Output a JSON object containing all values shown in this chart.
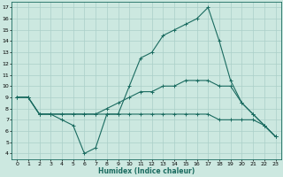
{
  "title": "",
  "xlabel": "Humidex (Indice chaleur)",
  "ylabel": "",
  "background_color": "#cce8e0",
  "line_color": "#1a6b60",
  "grid_color": "#aacfc8",
  "xlim": [
    -0.5,
    23.5
  ],
  "ylim": [
    3.5,
    17.5
  ],
  "xticks": [
    0,
    1,
    2,
    3,
    4,
    5,
    6,
    7,
    8,
    9,
    10,
    11,
    12,
    13,
    14,
    15,
    16,
    17,
    18,
    19,
    20,
    21,
    22,
    23
  ],
  "yticks": [
    4,
    5,
    6,
    7,
    8,
    9,
    10,
    11,
    12,
    13,
    14,
    15,
    16,
    17
  ],
  "line1_x": [
    0,
    1,
    2,
    3,
    4,
    5,
    6,
    7,
    8,
    9,
    10,
    11,
    12,
    13,
    14,
    15,
    16,
    17,
    18,
    19,
    20,
    21,
    22,
    23
  ],
  "line1_y": [
    9.0,
    9.0,
    7.5,
    7.5,
    7.0,
    6.5,
    4.0,
    4.5,
    7.5,
    7.5,
    10.0,
    12.5,
    13.0,
    14.5,
    15.0,
    15.5,
    16.0,
    17.0,
    14.0,
    10.5,
    8.5,
    7.5,
    6.5,
    5.5
  ],
  "line2_x": [
    0,
    1,
    2,
    3,
    4,
    5,
    6,
    7,
    8,
    9,
    10,
    11,
    12,
    13,
    14,
    15,
    16,
    17,
    18,
    19,
    20,
    21,
    22,
    23
  ],
  "line2_y": [
    9.0,
    9.0,
    7.5,
    7.5,
    7.5,
    7.5,
    7.5,
    7.5,
    8.0,
    8.5,
    9.0,
    9.5,
    9.5,
    10.0,
    10.0,
    10.5,
    10.5,
    10.5,
    10.0,
    10.0,
    8.5,
    7.5,
    6.5,
    5.5
  ],
  "line3_x": [
    0,
    1,
    2,
    3,
    4,
    5,
    6,
    7,
    8,
    9,
    10,
    11,
    12,
    13,
    14,
    15,
    16,
    17,
    18,
    19,
    20,
    21,
    22,
    23
  ],
  "line3_y": [
    9.0,
    9.0,
    7.5,
    7.5,
    7.5,
    7.5,
    7.5,
    7.5,
    7.5,
    7.5,
    7.5,
    7.5,
    7.5,
    7.5,
    7.5,
    7.5,
    7.5,
    7.5,
    7.0,
    7.0,
    7.0,
    7.0,
    6.5,
    5.5
  ]
}
